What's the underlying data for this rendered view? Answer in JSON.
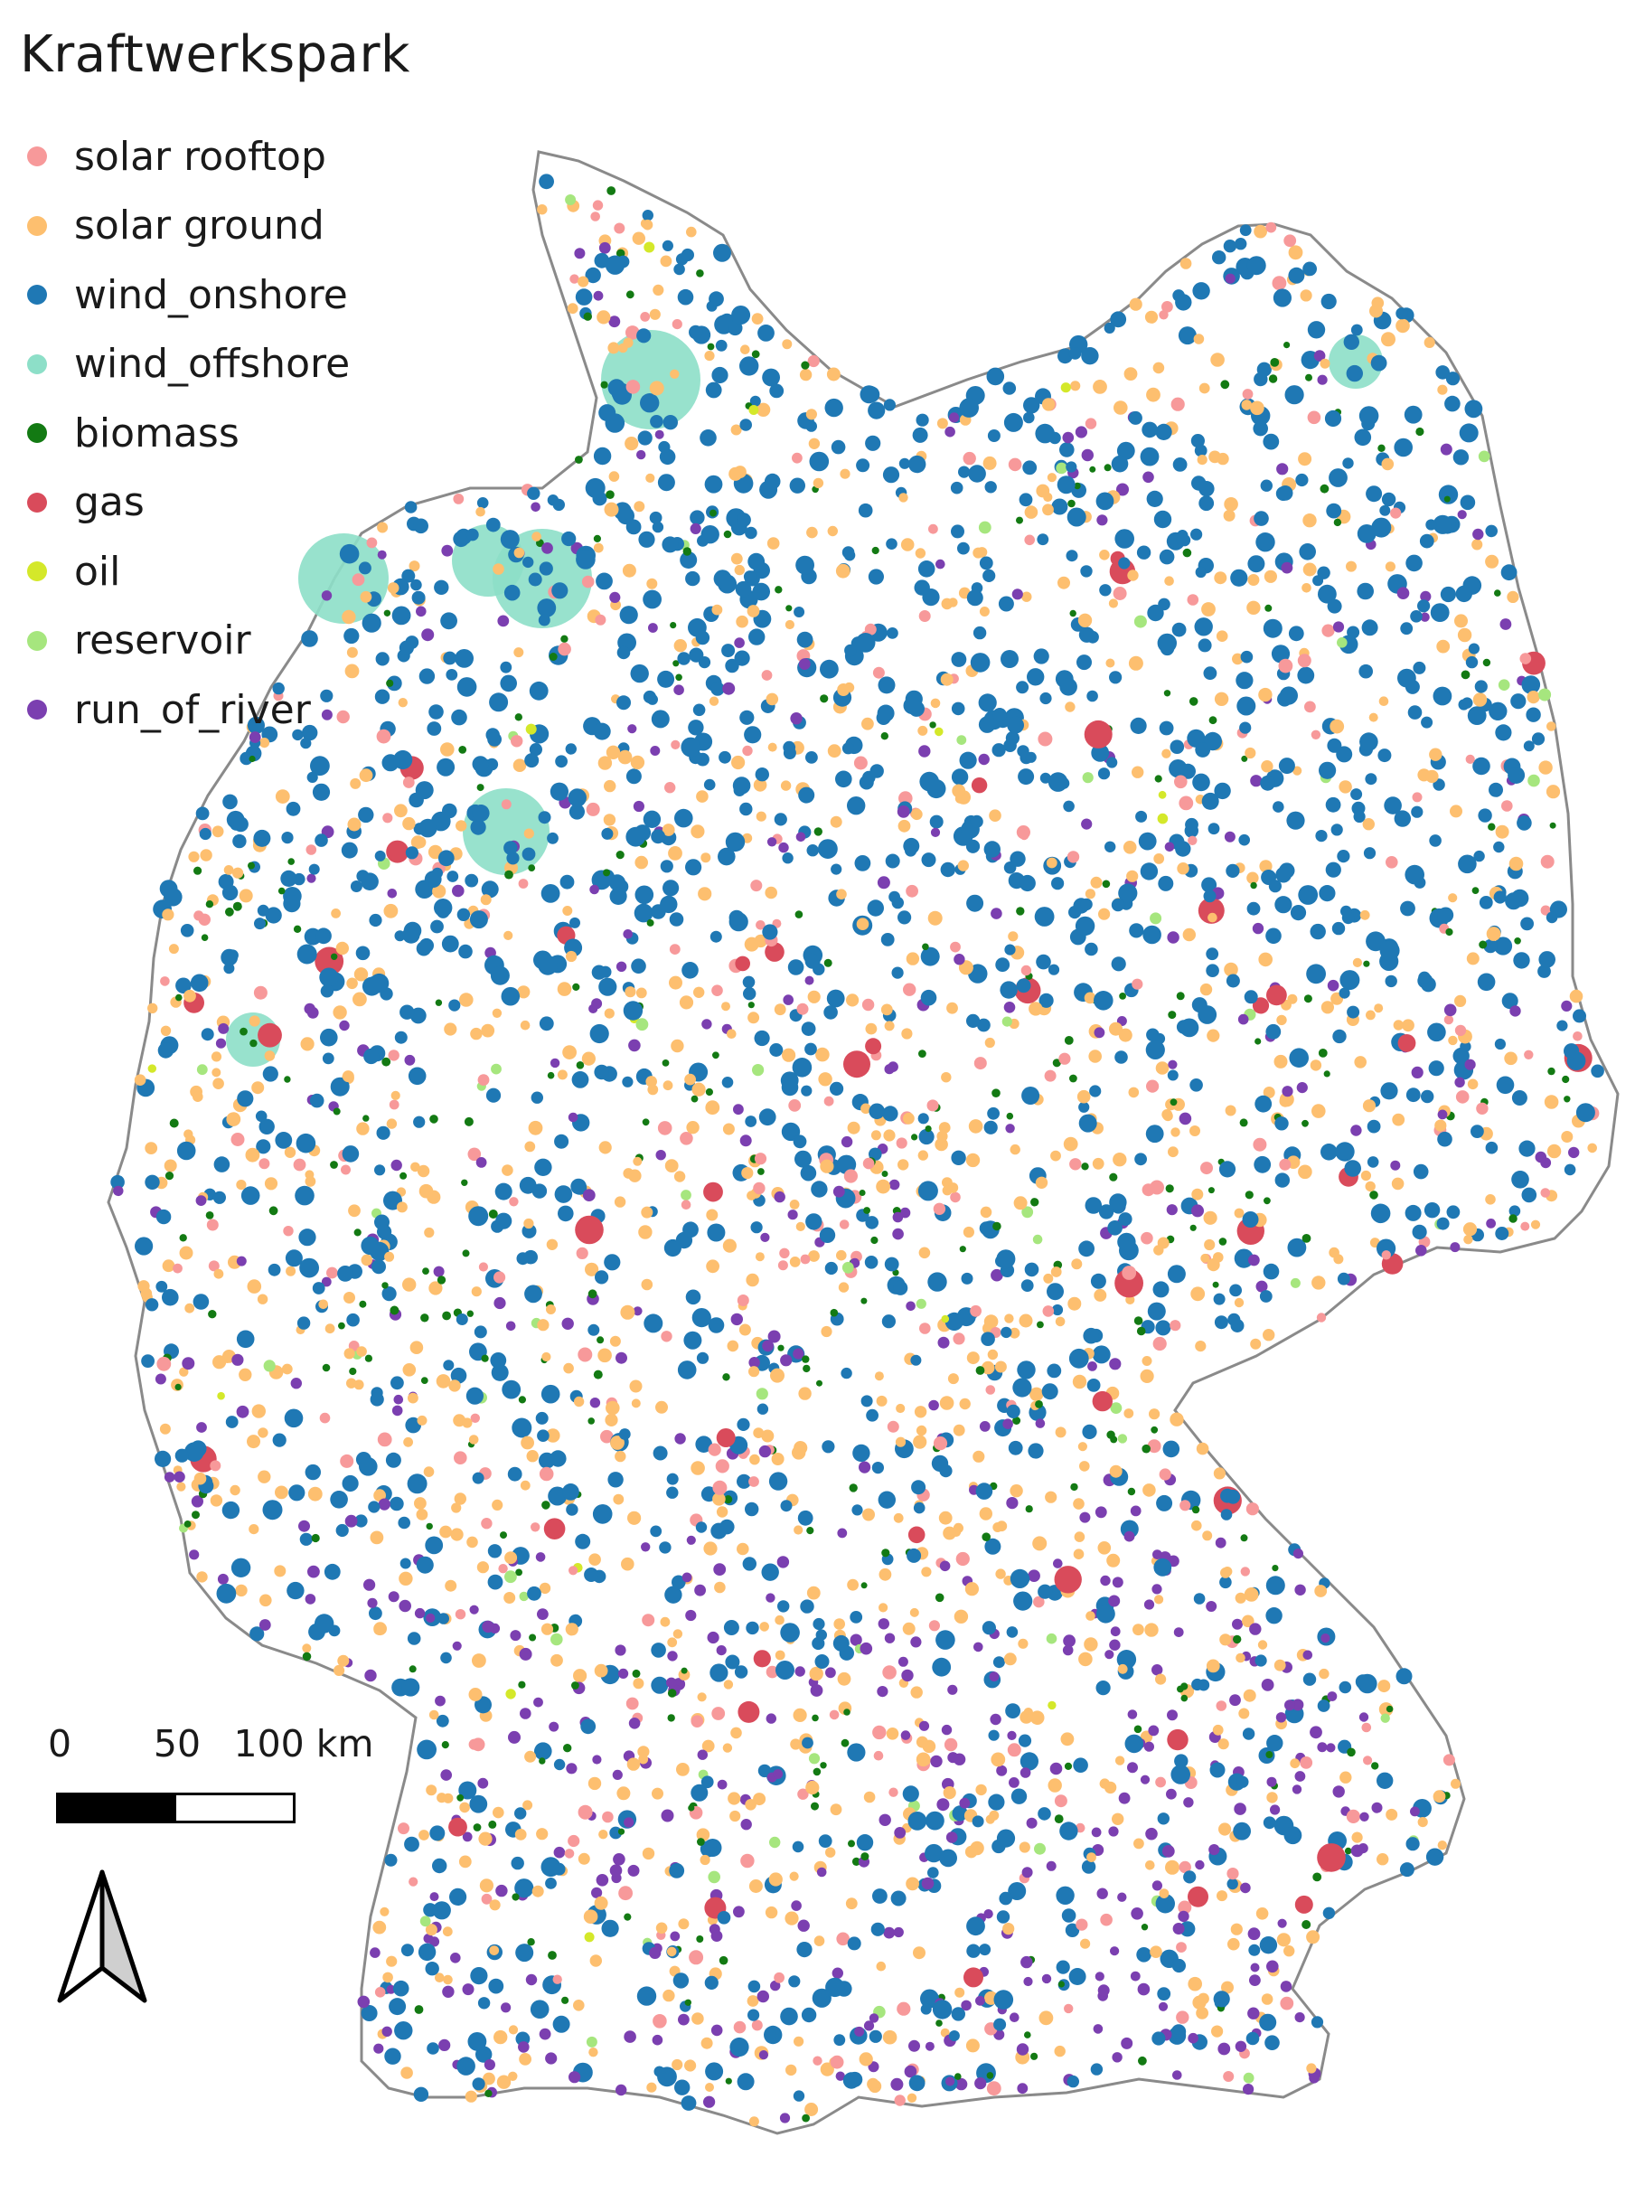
{
  "map": {
    "title": "Kraftwerkspark",
    "legend": [
      {
        "key": "solar_rooftop",
        "label": "solar rooftop",
        "color": "#f7999a"
      },
      {
        "key": "solar_ground",
        "label": "solar ground",
        "color": "#fdbf6f"
      },
      {
        "key": "wind_onshore",
        "label": "wind_onshore",
        "color": "#1f78b4"
      },
      {
        "key": "wind_offshore",
        "label": "wind_offshore",
        "color": "#8ddfc8"
      },
      {
        "key": "biomass",
        "label": "biomass",
        "color": "#137a13"
      },
      {
        "key": "gas",
        "label": "gas",
        "color": "#d94b5b"
      },
      {
        "key": "oil",
        "label": "oil",
        "color": "#d4e82a"
      },
      {
        "key": "reservoir",
        "label": "reservoir",
        "color": "#a6e67e"
      },
      {
        "key": "run_of_river",
        "label": "run_of_river",
        "color": "#7b3fb0"
      }
    ],
    "scale_bar": {
      "ticks": [
        "0",
        "50",
        "100 km"
      ]
    },
    "north_arrow": {
      "icon": "north-arrow-icon"
    },
    "border_color": "#8a8a8a"
  }
}
